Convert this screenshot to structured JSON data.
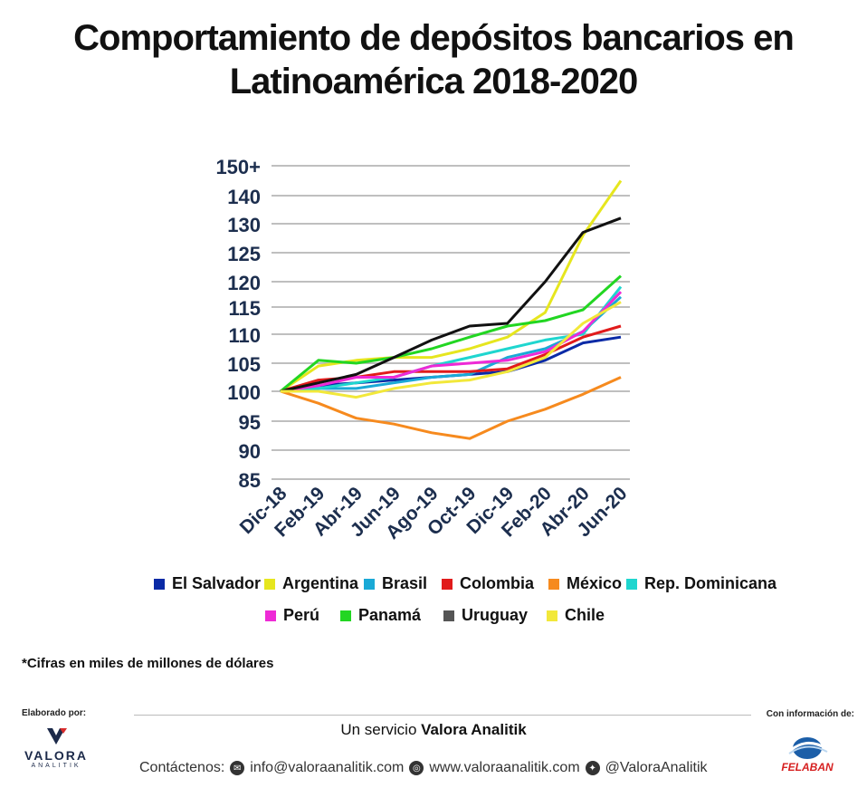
{
  "title_line1": "Comportamiento de depósitos bancarios en",
  "title_line2": "Latinoamérica 2018-2020",
  "chart_data": {
    "type": "line",
    "title": "Comportamiento de depósitos bancarios en Latinoamérica 2018-2020",
    "x": [
      "Dic-18",
      "Feb-19",
      "Abr-19",
      "Jun-19",
      "Ago-19",
      "Oct-19",
      "Dic-19",
      "Feb-20",
      "Abr-20",
      "Jun-20"
    ],
    "y_ticks": [
      "150+",
      "140",
      "130",
      "125",
      "120",
      "115",
      "110",
      "105",
      "100",
      "95",
      "90",
      "85"
    ],
    "grid": true,
    "series": [
      {
        "name": "El Salvador",
        "color": "#0a2aa6",
        "values": [
          100,
          101,
          101.5,
          102,
          102.5,
          103,
          103.5,
          105.5,
          108.5,
          109.5
        ]
      },
      {
        "name": "Argentina",
        "color": "#e6e61e",
        "values": [
          100,
          104.5,
          105.5,
          106,
          106,
          107.5,
          109.5,
          114,
          128,
          145
        ]
      },
      {
        "name": "Brasil",
        "color": "#1aa9d6",
        "values": [
          100,
          100.5,
          100.5,
          101.5,
          102.5,
          103,
          106,
          107.5,
          110.5,
          117
        ]
      },
      {
        "name": "Colombia",
        "color": "#e11b1b",
        "values": [
          100,
          102,
          102.5,
          103.5,
          103.5,
          103.5,
          104,
          106.5,
          109.5,
          111.5
        ]
      },
      {
        "name": "México",
        "color": "#f68a1e",
        "values": [
          100,
          98,
          95.5,
          94.5,
          93,
          92,
          95,
          97,
          99.5,
          102.5
        ]
      },
      {
        "name": "Rep. Dominicana",
        "color": "#1fd6cf",
        "values": [
          100,
          100.5,
          101.5,
          102.5,
          104.5,
          106,
          107.5,
          109,
          110,
          119
        ]
      },
      {
        "name": "Perú",
        "color": "#ee2ad6",
        "values": [
          100,
          101,
          102.5,
          102.5,
          104.5,
          105,
          105.5,
          107,
          110.5,
          118
        ]
      },
      {
        "name": "Panamá",
        "color": "#22d622",
        "values": [
          100,
          105.5,
          105,
          106,
          107.5,
          109.5,
          111.5,
          112.5,
          114.5,
          121
        ]
      },
      {
        "name": "Uruguay",
        "color": "#111111",
        "values": [
          100,
          101.5,
          103,
          106,
          109,
          111.5,
          112,
          120,
          128.5,
          132
        ]
      },
      {
        "name": "Chile",
        "color": "#f2e83a",
        "values": [
          100,
          100,
          99,
          100.5,
          101.5,
          102,
          103.5,
          106,
          112,
          116
        ]
      }
    ]
  },
  "legend_row1": [
    {
      "label": "El Salvador",
      "color": "#0a2aa6"
    },
    {
      "label": "Argentina",
      "color": "#e6e61e"
    },
    {
      "label": "Brasil",
      "color": "#1aa9d6"
    },
    {
      "label": "Colombia",
      "color": "#e11b1b"
    },
    {
      "label": "México",
      "color": "#f68a1e"
    },
    {
      "label": "Rep. Dominicana",
      "color": "#1fd6cf"
    }
  ],
  "legend_row2": [
    {
      "label": "Perú",
      "color": "#ee2ad6"
    },
    {
      "label": "Panamá",
      "color": "#22d622"
    },
    {
      "label": "Uruguay",
      "color": "#555555"
    },
    {
      "label": "Chile",
      "color": "#f2e83a"
    }
  ],
  "note": "*Cifras en miles de millones de dólares",
  "footer": {
    "made_by": "Elaborado por:",
    "source_label": "Con información de:",
    "service_prefix": "Un servicio ",
    "service_brand": "Valora Analitik",
    "contact_label": "Contáctenos:",
    "email": "info@valoraanalitik.com",
    "web": "www.valoraanalitik.com",
    "twitter": "@ValoraAnalitik",
    "logo_left_name": "VALORA",
    "logo_left_sub": "ANALITIK",
    "logo_right_name": "FELABAN"
  }
}
